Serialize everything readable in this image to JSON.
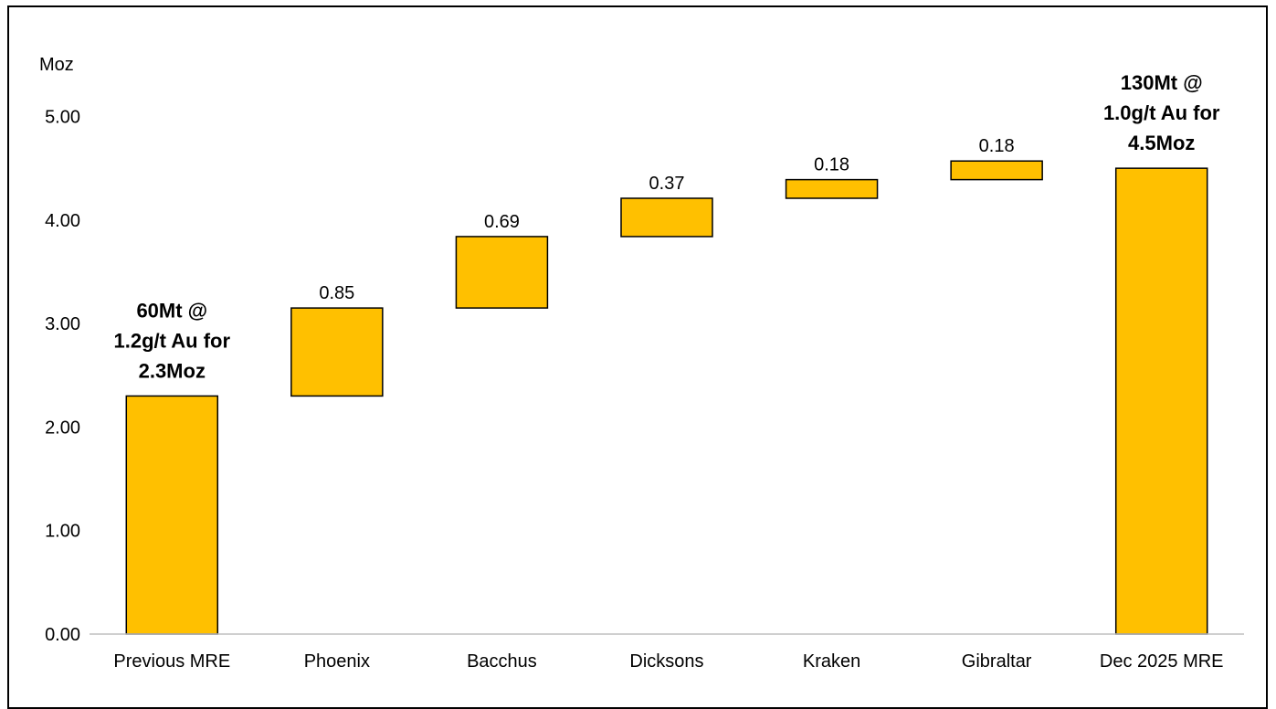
{
  "chart_data": {
    "type": "bar",
    "subtype": "waterfall",
    "ylabel": "Moz",
    "ylim": [
      0,
      5.5
    ],
    "yticks": [
      "0.00",
      "1.00",
      "2.00",
      "3.00",
      "4.00",
      "5.00"
    ],
    "categories": [
      "Previous MRE",
      "Phoenix",
      "Bacchus",
      "Dicksons",
      "Kraken",
      "Gibraltar",
      "Dec 2025 MRE"
    ],
    "bars": [
      {
        "category": "Previous MRE",
        "kind": "total",
        "base": 0,
        "value": 2.3
      },
      {
        "category": "Phoenix",
        "kind": "increment",
        "base": 2.3,
        "value": 0.85,
        "label": "0.85"
      },
      {
        "category": "Bacchus",
        "kind": "increment",
        "base": 3.15,
        "value": 0.69,
        "label": "0.69"
      },
      {
        "category": "Dicksons",
        "kind": "increment",
        "base": 3.84,
        "value": 0.37,
        "label": "0.37"
      },
      {
        "category": "Kraken",
        "kind": "increment",
        "base": 4.21,
        "value": 0.18,
        "label": "0.18"
      },
      {
        "category": "Gibraltar",
        "kind": "increment",
        "base": 4.39,
        "value": 0.18,
        "label": "0.18"
      },
      {
        "category": "Dec 2025 MRE",
        "kind": "total",
        "base": 0,
        "value": 4.5
      }
    ],
    "annotations": [
      {
        "category": "Previous MRE",
        "lines": [
          "60Mt @",
          "1.2g/t Au for",
          "2.3Moz"
        ]
      },
      {
        "category": "Dec 2025 MRE",
        "lines": [
          "130Mt @",
          "1.0g/t Au for",
          "4.5Moz"
        ]
      }
    ],
    "bar_color": "#FFC000",
    "bar_edge_color": "#000000",
    "grid": false
  }
}
